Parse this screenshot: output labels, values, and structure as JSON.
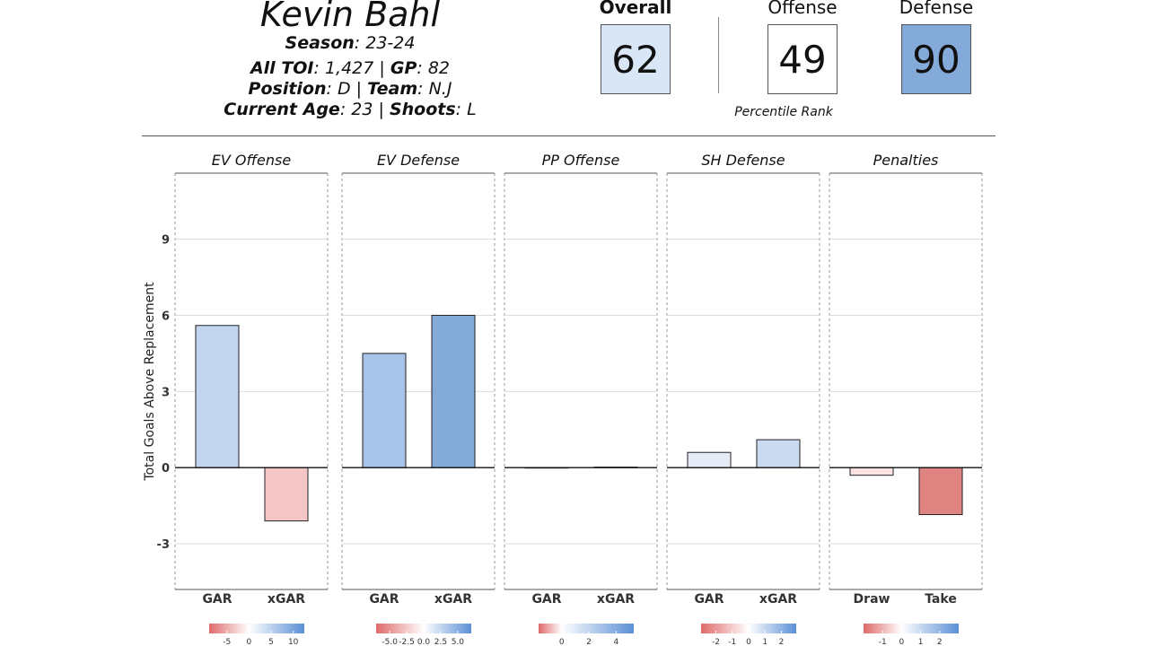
{
  "player": {
    "name": "Kevin Bahl",
    "season_label": "Season",
    "season": "23-24",
    "toi_label": "All TOI",
    "toi": "1,427",
    "gp_label": "GP",
    "gp": "82",
    "position_label": "Position",
    "position": "D",
    "team_label": "Team",
    "team": "N.J",
    "age_label": "Current Age",
    "age": "23",
    "shoots_label": "Shoots",
    "shoots": "L"
  },
  "summary": {
    "overall": {
      "label": "Overall",
      "value": "62",
      "color": "#d9e6f5"
    },
    "offense": {
      "label": "Offense",
      "value": "49",
      "color": "#ffffff"
    },
    "defense": {
      "label": "Defense",
      "value": "90",
      "color": "#83aad9"
    },
    "percentile_label": "Percentile Rank"
  },
  "chart_data": {
    "type": "bar",
    "ylabel": "Total Goals Above Replacement",
    "ylim": [
      -4.8,
      11.6
    ],
    "yticks": [
      -3,
      0,
      3,
      6,
      9
    ],
    "grid": true,
    "panels": [
      {
        "title": "EV Offense",
        "categories": [
          "GAR",
          "xGAR"
        ],
        "values": [
          5.6,
          -2.1
        ],
        "colors": [
          "#c2d5ee",
          "#f4c6c6"
        ],
        "legend": {
          "ticks": [
            "-5",
            "0",
            "5",
            "10"
          ],
          "min": -9,
          "max": 12.5,
          "tickvals": [
            -5,
            0,
            5,
            10
          ]
        }
      },
      {
        "title": "EV Defense",
        "categories": [
          "GAR",
          "xGAR"
        ],
        "values": [
          4.5,
          6.0
        ],
        "colors": [
          "#a7c3e7",
          "#83aad9"
        ],
        "legend": {
          "ticks": [
            "-5.0",
            "-2.5",
            "0.0",
            "2.5",
            "5.0"
          ],
          "min": -7,
          "max": 7,
          "tickvals": [
            -5,
            -2.5,
            0,
            2.5,
            5
          ]
        }
      },
      {
        "title": "PP Offense",
        "categories": [
          "GAR",
          "xGAR"
        ],
        "values": [
          0.0,
          0.02
        ],
        "colors": [
          "#ffffff",
          "#ffffff"
        ],
        "legend": {
          "ticks": [
            "0",
            "2",
            "4"
          ],
          "min": -1.7,
          "max": 5.3,
          "tickvals": [
            0,
            2,
            4
          ]
        }
      },
      {
        "title": "SH Defense",
        "categories": [
          "GAR",
          "xGAR"
        ],
        "values": [
          0.6,
          1.1
        ],
        "colors": [
          "#e6ecf7",
          "#cbdaf1"
        ],
        "legend": {
          "ticks": [
            "-2",
            "-1",
            "0",
            "1",
            "2"
          ],
          "min": -2.9,
          "max": 2.9,
          "tickvals": [
            -2,
            -1,
            0,
            1,
            2
          ]
        }
      },
      {
        "title": "Penalties",
        "categories": [
          "Draw",
          "Take"
        ],
        "values": [
          -0.3,
          -1.85
        ],
        "colors": [
          "#fbe3e3",
          "#e08482"
        ],
        "legend": {
          "ticks": [
            "-1",
            "0",
            "1",
            "2"
          ],
          "min": -2,
          "max": 3,
          "tickvals": [
            -1,
            0,
            1,
            2
          ]
        }
      }
    ],
    "colors": {
      "negative": "#e06a6a",
      "neutral": "#ffffff",
      "positive": "#5b8fd6"
    }
  }
}
